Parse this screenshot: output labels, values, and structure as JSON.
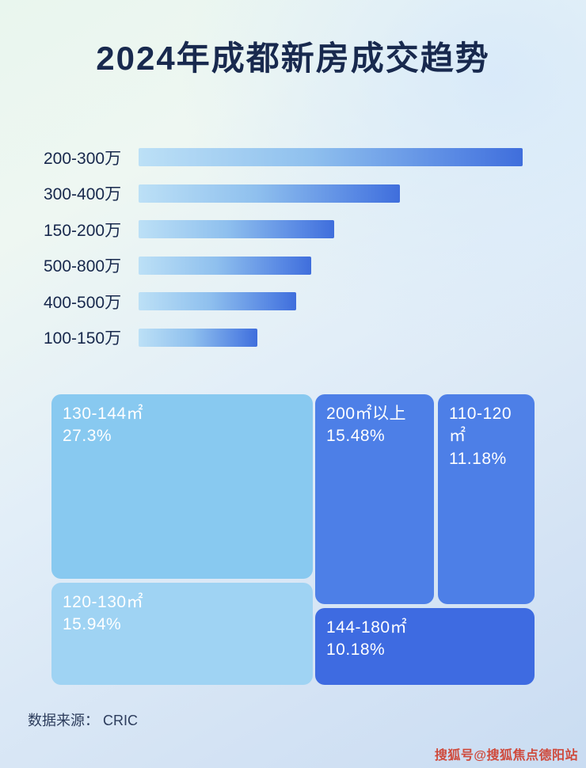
{
  "page": {
    "title": "2024年成都新房成交趋势",
    "source_note": "数据来源： CRIC",
    "watermark": "搜狐号@搜狐焦点德阳站"
  },
  "colors": {
    "title_text": "#18294e",
    "bar_gradient_start": "#bce0f6",
    "bar_gradient_end": "#3f6edc",
    "treemap_light_blue": "#88c9f0",
    "treemap_lighter_blue": "#9fd3f3",
    "treemap_medium_blue": "#4d7fe7",
    "treemap_dark_blue": "#3e6be1",
    "watermark_text": "#cf4a3c"
  },
  "chart_data": [
    {
      "type": "bar",
      "orientation": "horizontal",
      "title": "2024年成都新房成交趋势",
      "categories": [
        "200-300万",
        "300-400万",
        "150-200万",
        "500-800万",
        "400-500万",
        "100-150万"
      ],
      "values": [
        100,
        68,
        51,
        45,
        41,
        31
      ],
      "xlabel": "",
      "ylabel": "",
      "xlim": [
        0,
        100
      ],
      "grid": false,
      "legend": false,
      "note": "Bars carry no numeric labels; values are estimated lengths as percent of the longest bar (200-300万)."
    },
    {
      "type": "treemap",
      "title": "",
      "items": [
        {
          "label": "130-144㎡",
          "percent": "27.3%",
          "value": 27.3
        },
        {
          "label": "120-130㎡",
          "percent": "15.94%",
          "value": 15.94
        },
        {
          "label": "200㎡以上",
          "percent": "15.48%",
          "value": 15.48
        },
        {
          "label": "110-120㎡",
          "percent": "11.18%",
          "value": 11.18
        },
        {
          "label": "144-180㎡",
          "percent": "10.18%",
          "value": 10.18
        }
      ]
    }
  ]
}
